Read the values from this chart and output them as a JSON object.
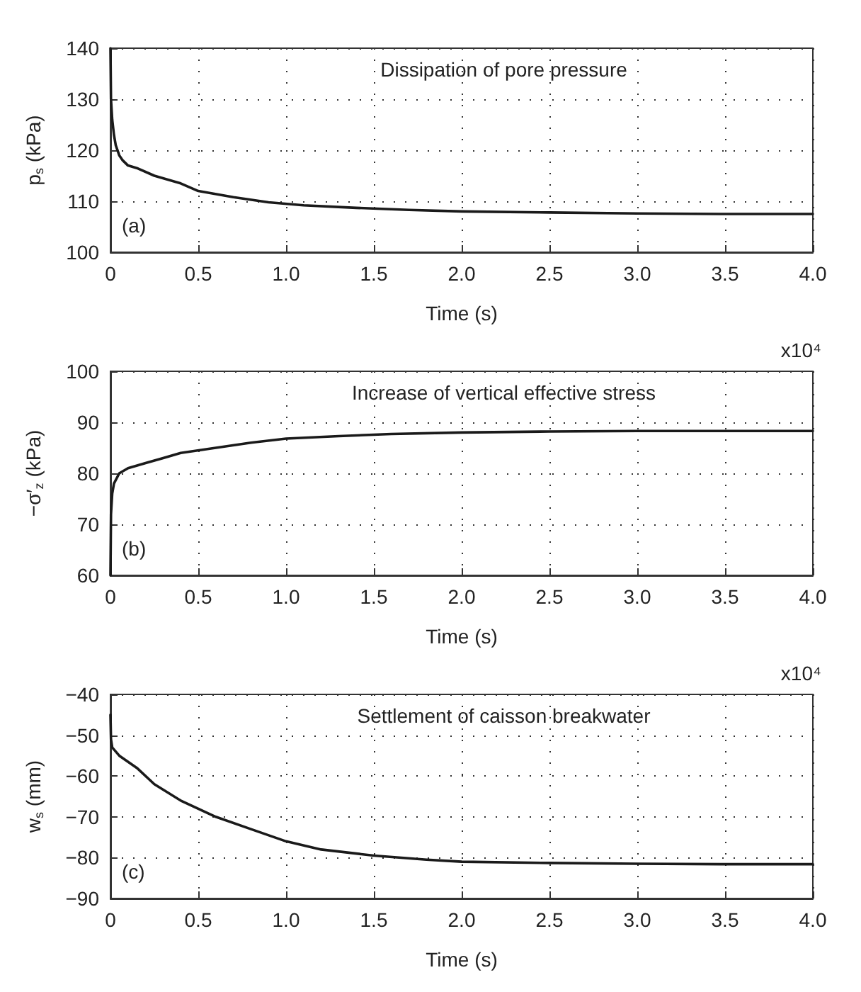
{
  "chart_data": [
    {
      "type": "line",
      "title": "Dissipation of pore pressure",
      "xlabel": "Time (s)",
      "ylabel": "p$_{s}$ (kPa)",
      "annotations": [
        "(a)"
      ],
      "xlim": [
        0,
        4
      ],
      "xticks": [
        0,
        0.5,
        {
          "value": 1,
          "label": "1.0"
        },
        1.5,
        {
          "value": 2,
          "label": "2.0"
        },
        2.5,
        {
          "value": 3,
          "label": "3.0"
        },
        3.5,
        {
          "value": 4,
          "label": "4.0"
        }
      ],
      "ylim": [
        100,
        140
      ],
      "yticks": [
        100,
        110,
        120,
        130,
        140
      ],
      "grid": true,
      "marker": "none",
      "line_style": "solid",
      "series": [
        {
          "color": "#1a1a1a",
          "x": [
            0,
            0.003,
            0.01,
            0.02,
            0.03,
            0.05,
            0.07,
            0.1,
            0.15,
            0.25,
            0.4,
            0.5,
            0.7,
            0.9,
            1.1,
            1.4,
            1.7,
            2.0,
            2.5,
            3.0,
            3.5,
            4.0
          ],
          "values": [
            140,
            130,
            126,
            123,
            121,
            119,
            118,
            117,
            116.5,
            115,
            113.5,
            112,
            110.8,
            109.8,
            109.2,
            108.7,
            108.3,
            108,
            107.8,
            107.6,
            107.5,
            107.5
          ]
        }
      ]
    },
    {
      "type": "line",
      "title": "Increase of vertical effective stress",
      "xlabel": "Time (s)",
      "ylabel": "−σ′$_{z}$ (kPa)",
      "annotations": [
        "(b)",
        "x10⁴"
      ],
      "xlim": [
        0,
        4
      ],
      "xticks": [
        0,
        0.5,
        {
          "value": 1,
          "label": "1.0"
        },
        1.5,
        {
          "value": 2,
          "label": "2.0"
        },
        2.5,
        {
          "value": 3,
          "label": "3.0"
        },
        3.5,
        {
          "value": 4,
          "label": "4.0"
        }
      ],
      "ylim": [
        60,
        100
      ],
      "yticks": [
        60,
        70,
        80,
        90,
        100
      ],
      "grid": true,
      "marker": "none",
      "line_style": "solid",
      "series": [
        {
          "color": "#1a1a1a",
          "x": [
            0,
            0.003,
            0.01,
            0.02,
            0.05,
            0.1,
            0.2,
            0.3,
            0.4,
            0.6,
            0.8,
            1.0,
            1.3,
            1.6,
            2.0,
            2.5,
            3.0,
            3.5,
            4.0
          ],
          "values": [
            60,
            72,
            76,
            78,
            80,
            81,
            82,
            83,
            84,
            85,
            86,
            86.8,
            87.3,
            87.7,
            88,
            88.2,
            88.3,
            88.3,
            88.3
          ]
        }
      ]
    },
    {
      "type": "line",
      "title": "Settlement of caisson breakwater",
      "xlabel": "Time (s)",
      "ylabel": "w$_{s}$ (mm)",
      "annotations": [
        "(c)",
        "x10⁴"
      ],
      "xlim": [
        0,
        4
      ],
      "xticks": [
        0,
        0.5,
        {
          "value": 1,
          "label": "1.0"
        },
        1.5,
        {
          "value": 2,
          "label": "2.0"
        },
        2.5,
        {
          "value": 3,
          "label": "3.0"
        },
        3.5,
        {
          "value": 4,
          "label": "4.0"
        }
      ],
      "ylim": [
        -90,
        -40
      ],
      "yticks": [
        {
          "value": -90,
          "label": "−90"
        },
        {
          "value": -80,
          "label": "−80"
        },
        {
          "value": -70,
          "label": "−70"
        },
        {
          "value": -60,
          "label": "−60"
        },
        {
          "value": -50,
          "label": "−50"
        },
        {
          "value": -40,
          "label": "−40"
        }
      ],
      "grid": true,
      "marker": "none",
      "line_style": "solid",
      "series": [
        {
          "color": "#1a1a1a",
          "x": [
            0,
            0.003,
            0.01,
            0.05,
            0.15,
            0.25,
            0.4,
            0.6,
            0.8,
            1.0,
            1.2,
            1.5,
            1.8,
            2.0,
            2.5,
            3.0,
            3.5,
            4.0
          ],
          "values": [
            -45,
            -51,
            -53,
            -55,
            -58,
            -62,
            -66,
            -70,
            -73,
            -76,
            -78,
            -79.5,
            -80.5,
            -81,
            -81.3,
            -81.5,
            -81.6,
            -81.6
          ]
        }
      ]
    }
  ]
}
